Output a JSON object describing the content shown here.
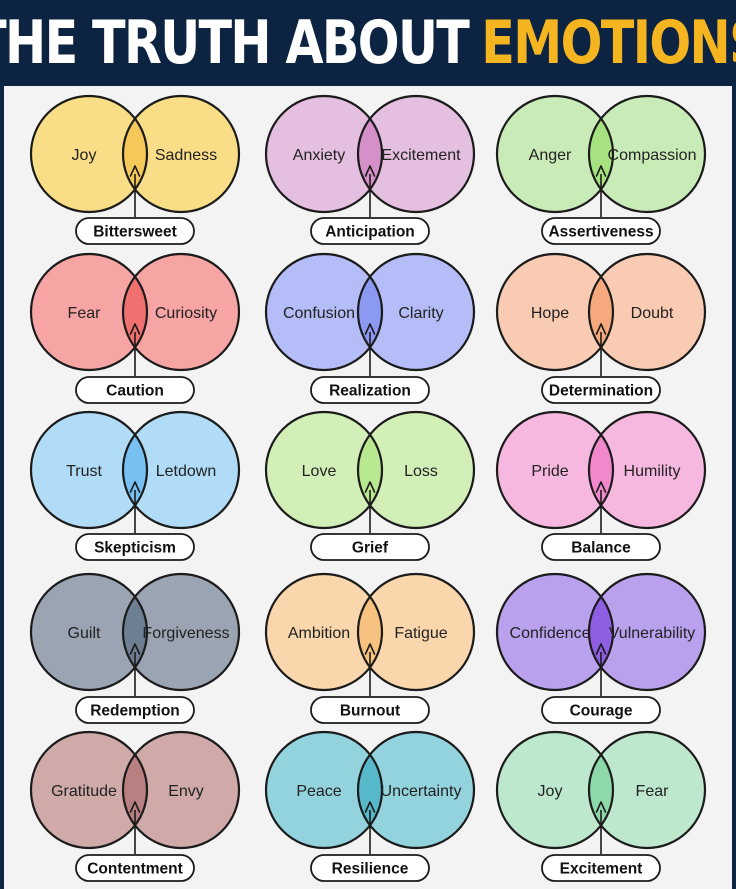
{
  "header": {
    "title_part1": "THE TRUTH ABOUT",
    "title_part2": "EMOTIONS",
    "color_part1": "#ffffff",
    "color_part2": "#f5b521"
  },
  "diagrams": [
    {
      "left": "Joy",
      "right": "Sadness",
      "result": "Bittersweet",
      "fill": "#f9dd87",
      "overlap": "#f5c85a"
    },
    {
      "left": "Anxiety",
      "right": "Excitement",
      "result": "Anticipation",
      "fill": "#e4bfe0",
      "overlap": "#d58fc9"
    },
    {
      "left": "Anger",
      "right": "Compassion",
      "result": "Assertiveness",
      "fill": "#c9ebb8",
      "overlap": "#a6e27f"
    },
    {
      "left": "Fear",
      "right": "Curiosity",
      "result": "Caution",
      "fill": "#f7a4a4",
      "overlap": "#f07070"
    },
    {
      "left": "Confusion",
      "right": "Clarity",
      "result": "Realization",
      "fill": "#b4bdf7",
      "overlap": "#8c99f2"
    },
    {
      "left": "Hope",
      "right": "Doubt",
      "result": "Determination",
      "fill": "#f8cbb2",
      "overlap": "#f5a97c"
    },
    {
      "left": "Trust",
      "right": "Letdown",
      "result": "Skepticism",
      "fill": "#b0dcf7",
      "overlap": "#77c1f2"
    },
    {
      "left": "Love",
      "right": "Loss",
      "result": "Grief",
      "fill": "#d2efb8",
      "overlap": "#b8e88f"
    },
    {
      "left": "Pride",
      "right": "Humility",
      "result": "Balance",
      "fill": "#f7b8e0",
      "overlap": "#f288cc"
    },
    {
      "left": "Guilt",
      "right": "Forgiveness",
      "result": "Redemption",
      "fill": "#9aa4b2",
      "overlap": "#6e7f93"
    },
    {
      "left": "Ambition",
      "right": "Fatigue",
      "result": "Burnout",
      "fill": "#fad6ac",
      "overlap": "#f7c17f"
    },
    {
      "left": "Confidence",
      "right": "Vulnerability",
      "result": "Courage",
      "fill": "#b9a1ee",
      "overlap": "#8f5fe3"
    },
    {
      "left": "Gratitude",
      "right": "Envy",
      "result": "Contentment",
      "fill": "#cfaaa9",
      "overlap": "#b88080"
    },
    {
      "left": "Peace",
      "right": "Uncertainty",
      "result": "Resilience",
      "fill": "#92d3de",
      "overlap": "#56b8c8"
    },
    {
      "left": "Joy",
      "right": "Fear",
      "result": "Excitement",
      "fill": "#bde8cd",
      "overlap": "#8ed9a9"
    }
  ]
}
